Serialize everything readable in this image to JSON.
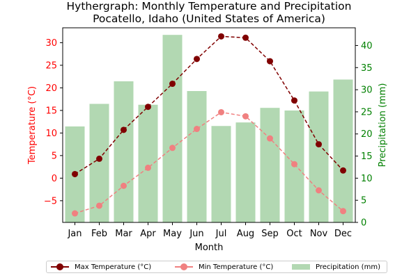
{
  "chart_data": {
    "type": "line+bar",
    "title": "Hythergraph: Monthly Temperature and Precipitation",
    "subtitle": "Pocatello, Idaho (United States of America)",
    "xlabel": "Month",
    "ylabel_left": "Temperature (°C)",
    "ylabel_right": "Precipitation (mm)",
    "categories": [
      "Jan",
      "Feb",
      "Mar",
      "Apr",
      "May",
      "Jun",
      "Jul",
      "Aug",
      "Sep",
      "Oct",
      "Nov",
      "Dec"
    ],
    "ylim_left": [
      -9.8,
      33.3
    ],
    "ylim_right": [
      0,
      44
    ],
    "yticks_left": [
      -5,
      0,
      5,
      10,
      15,
      20,
      25,
      30
    ],
    "yticks_right": [
      0,
      5,
      10,
      15,
      20,
      25,
      30,
      35,
      40
    ],
    "legend_placement": "bottom",
    "series": [
      {
        "name": "Max Temperature (°C)",
        "type": "line",
        "axis": "left",
        "color": "#800000",
        "values": [
          0.9,
          4.3,
          10.7,
          15.8,
          20.9,
          26.4,
          31.4,
          31.1,
          25.9,
          17.2,
          7.5,
          1.7
        ]
      },
      {
        "name": "Min Temperature (°C)",
        "type": "line",
        "axis": "left",
        "color": "#f08080",
        "values": [
          -7.8,
          -6.1,
          -1.7,
          2.3,
          6.7,
          10.9,
          14.6,
          13.7,
          8.8,
          3.1,
          -2.7,
          -7.3
        ]
      },
      {
        "name": "Precipitation (mm)",
        "type": "bar",
        "axis": "right",
        "color": "#b2d8b2",
        "values": [
          21.7,
          26.8,
          31.9,
          26.6,
          42.4,
          29.7,
          21.8,
          22.6,
          25.9,
          25.3,
          29.6,
          32.3
        ]
      }
    ]
  }
}
